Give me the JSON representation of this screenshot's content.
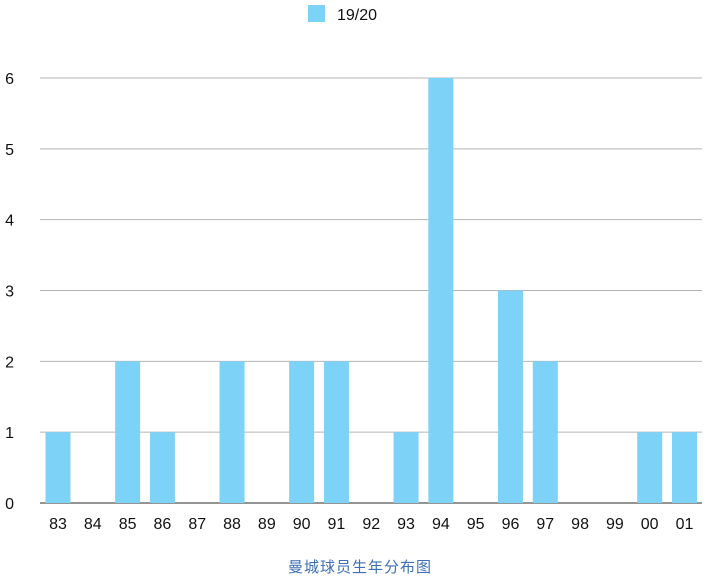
{
  "chart_data": {
    "type": "bar",
    "categories": [
      "83",
      "84",
      "85",
      "86",
      "87",
      "88",
      "89",
      "90",
      "91",
      "92",
      "93",
      "94",
      "95",
      "96",
      "97",
      "98",
      "99",
      "00",
      "01"
    ],
    "series": [
      {
        "name": "19/20",
        "values": [
          1,
          0,
          2,
          1,
          0,
          2,
          0,
          2,
          2,
          0,
          1,
          6,
          0,
          3,
          2,
          0,
          0,
          1,
          1
        ],
        "color": "#7dd3f7"
      }
    ],
    "y_ticks": [
      "0",
      "1",
      "2",
      "3",
      "4",
      "5",
      "6"
    ],
    "ylim": [
      0,
      6
    ],
    "grid": true,
    "legend_position": "top-center"
  },
  "caption": "曼城球员生年分布图"
}
